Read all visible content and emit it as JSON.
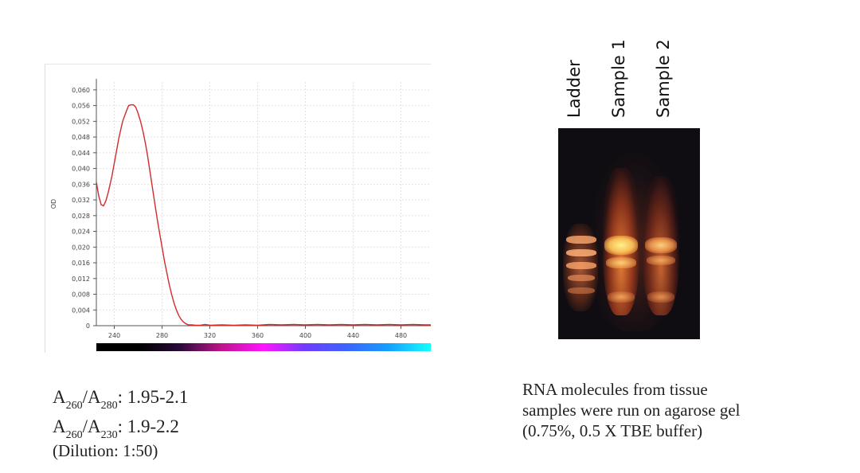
{
  "chart_data": {
    "type": "line",
    "title": "",
    "xlabel": "",
    "ylabel": "OD",
    "xlim": [
      225,
      505
    ],
    "ylim": [
      0,
      0.062
    ],
    "grid": true,
    "x_ticks": [
      "240",
      "280",
      "320",
      "360",
      "400",
      "440",
      "480"
    ],
    "y_ticks": [
      "0",
      "0,004",
      "0,008",
      "0,012",
      "0,016",
      "0,020",
      "0,024",
      "0,028",
      "0,032",
      "0,036",
      "0,040",
      "0,044",
      "0,048",
      "0,052",
      "0,056",
      "0,060"
    ],
    "series": [
      {
        "color": "#d42a2a",
        "x": [
          225,
          227,
          229,
          231,
          233,
          235,
          238,
          241,
          244,
          247,
          250,
          252,
          254,
          256,
          258,
          260,
          262,
          264,
          266,
          268,
          270,
          272,
          274,
          276,
          278,
          280,
          282,
          284,
          286,
          288,
          290,
          292,
          294,
          296,
          298,
          300,
          302,
          305,
          308,
          312,
          316,
          320,
          330,
          340,
          350,
          360,
          370,
          380,
          390,
          400,
          410,
          420,
          430,
          440,
          450,
          460,
          470,
          480,
          490,
          500,
          505
        ],
        "y": [
          0.0365,
          0.033,
          0.0308,
          0.0305,
          0.0318,
          0.034,
          0.038,
          0.043,
          0.048,
          0.052,
          0.0545,
          0.056,
          0.0562,
          0.0562,
          0.0556,
          0.054,
          0.052,
          0.0495,
          0.0465,
          0.043,
          0.039,
          0.035,
          0.031,
          0.027,
          0.0235,
          0.02,
          0.0165,
          0.0135,
          0.0105,
          0.008,
          0.0058,
          0.004,
          0.0026,
          0.0016,
          0.0009,
          0.0005,
          0.0002,
          0.0002,
          0.0001,
          0.0001,
          0.0003,
          0.0001,
          0.0002,
          0.0001,
          0.0002,
          0.0001,
          0.0003,
          0.0002,
          0.0003,
          0.0002,
          0.0003,
          0.0002,
          0.0003,
          0.0002,
          0.0003,
          0.0002,
          0.0003,
          0.0002,
          0.0003,
          0.0002,
          0.0002
        ]
      }
    ],
    "spectrum_bar_colors": [
      "#000000",
      "#000000",
      "#2a0a3a",
      "#c0148c",
      "#ff14ff",
      "#6e3cff",
      "#3c64ff",
      "#14a0ff",
      "#14ffff"
    ]
  },
  "ratios": {
    "line1": {
      "a": "A",
      "sub1": "260",
      "slash": "/A",
      "sub2": "280",
      "value": ": 1.95-2.1"
    },
    "line2": {
      "a": "A",
      "sub1": "260",
      "slash": "/A",
      "sub2": "230",
      "value": ": 1.9-2.2"
    },
    "dilution": "(Dilution: 1:50)"
  },
  "gel": {
    "lanes": [
      "Ladder",
      "Sample 1",
      "Sample 2"
    ]
  },
  "caption": {
    "line1": "RNA molecules from tissue",
    "line2": "samples were run on agarose gel",
    "line3": "(0.75%, 0.5 X TBE buffer)"
  }
}
